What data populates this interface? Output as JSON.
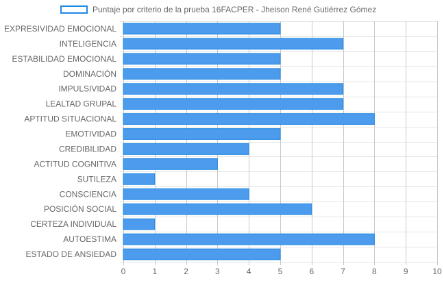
{
  "colors": {
    "bar_fill": "#4d9bec",
    "bar_border": "#1e88e5",
    "grid": "#e5e5e5",
    "grid_major": "#c8c8c8",
    "text": "#666666"
  },
  "chart_data": {
    "type": "bar",
    "orientation": "horizontal",
    "legend": {
      "label": "Puntaje por criterio de la prueba 16FACPER - Jheison René Gutiérrez Gómez",
      "position": "top"
    },
    "categories": [
      "EXPRESIVIDAD EMOCIONAL",
      "INTELIGENCIA",
      "ESTABILIDAD EMOCIONAL",
      "DOMINACIÓN",
      "IMPULSIVIDAD",
      "LEALTAD GRUPAL",
      "APTITUD SITUACIONAL",
      "EMOTIVIDAD",
      "CREDIBILIDAD",
      "ACTITUD COGNITIVA",
      "SUTILEZA",
      "CONSCIENCIA",
      "POSICIÓN SOCIAL",
      "CERTEZA INDIVIDUAL",
      "AUTOESTIMA",
      "ESTADO DE ANSIEDAD"
    ],
    "series": [
      {
        "name": "Puntaje por criterio de la prueba 16FACPER - Jheison René Gutiérrez Gómez",
        "values": [
          5,
          7,
          5,
          5,
          7,
          7,
          8,
          5,
          4,
          3,
          1,
          4,
          6,
          1,
          8,
          5
        ]
      }
    ],
    "xlim": [
      0,
      10
    ],
    "xticks": [
      "0",
      "1",
      "2",
      "3",
      "4",
      "5",
      "6",
      "7",
      "8",
      "9",
      "10"
    ],
    "grid": true
  }
}
